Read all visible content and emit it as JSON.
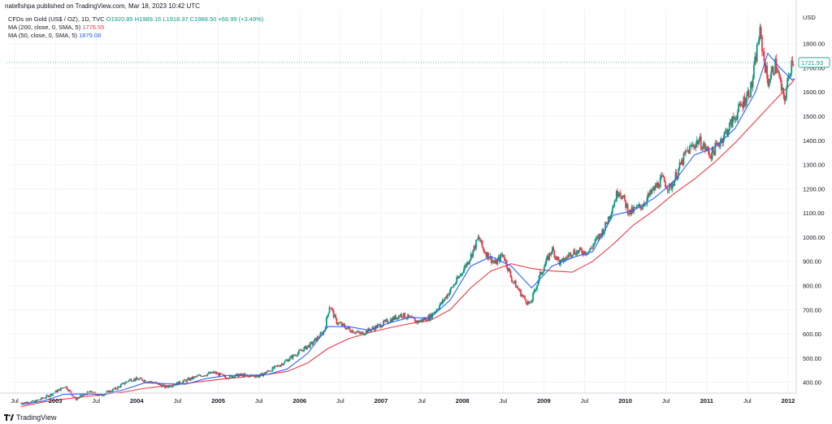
{
  "header": {
    "publisher": "natefishpa published on TradingView.com, Mar 18, 2023 10:42 UTC"
  },
  "legend": {
    "symbol": "CFDs on Gold (US$ / OZ), 1D, TVC",
    "open": "O1920.85",
    "high": "H1989.16",
    "low": "L1918.37",
    "close": "C1988.50",
    "change": "+66.99 (+3.49%)",
    "ma200_label": "MA (200, close, 0, SMA, 5)",
    "ma200_value": "1776.55",
    "ma50_label": "MA (50, close, 0, SMA, 5)",
    "ma50_value": "1879.08"
  },
  "footer": {
    "brand": "TradingView"
  },
  "colors": {
    "up": "#089981",
    "down": "#f23645",
    "ma200": "#f23645",
    "ma50": "#2962ff",
    "grid": "#f0f3fa"
  },
  "chart_data": {
    "type": "candlestick",
    "title": "CFDs on Gold (US$ / OZ), 1D, TVC",
    "currency_label": "USD",
    "y_ticks": [
      "400.00",
      "500.00",
      "600.00",
      "700.00",
      "800.00",
      "900.00",
      "1000.00",
      "1100.00",
      "1200.00",
      "1300.00",
      "1400.00",
      "1500.00",
      "1600.00",
      "1700.00",
      "1800.00"
    ],
    "ylim": [
      355,
      1940
    ],
    "x_ticks": [
      {
        "label": "Jul",
        "t": 2002.5,
        "bold": false
      },
      {
        "label": "2003",
        "t": 2003.0,
        "bold": true
      },
      {
        "label": "Jul",
        "t": 2003.5,
        "bold": false
      },
      {
        "label": "2004",
        "t": 2004.0,
        "bold": true
      },
      {
        "label": "Jul",
        "t": 2004.5,
        "bold": false
      },
      {
        "label": "2005",
        "t": 2005.0,
        "bold": true
      },
      {
        "label": "Jul",
        "t": 2005.5,
        "bold": false
      },
      {
        "label": "2006",
        "t": 2006.0,
        "bold": true
      },
      {
        "label": "Jul",
        "t": 2006.5,
        "bold": false
      },
      {
        "label": "2007",
        "t": 2007.0,
        "bold": true
      },
      {
        "label": "Jul",
        "t": 2007.5,
        "bold": false
      },
      {
        "label": "2008",
        "t": 2008.0,
        "bold": true
      },
      {
        "label": "Jul",
        "t": 2008.5,
        "bold": false
      },
      {
        "label": "2009",
        "t": 2009.0,
        "bold": true
      },
      {
        "label": "Jul",
        "t": 2009.5,
        "bold": false
      },
      {
        "label": "2010",
        "t": 2010.0,
        "bold": true
      },
      {
        "label": "Jul",
        "t": 2010.5,
        "bold": false
      },
      {
        "label": "2011",
        "t": 2011.0,
        "bold": true
      },
      {
        "label": "Jul",
        "t": 2011.5,
        "bold": false
      },
      {
        "label": "2012",
        "t": 2012.0,
        "bold": true
      }
    ],
    "xlim": [
      2002.4,
      2012.1
    ],
    "price_path": [
      [
        2002.58,
        315
      ],
      [
        2002.75,
        320
      ],
      [
        2002.92,
        345
      ],
      [
        2003.08,
        375
      ],
      [
        2003.12,
        385
      ],
      [
        2003.25,
        330
      ],
      [
        2003.42,
        360
      ],
      [
        2003.55,
        345
      ],
      [
        2003.75,
        375
      ],
      [
        2003.92,
        412
      ],
      [
        2004.05,
        412
      ],
      [
        2004.25,
        395
      ],
      [
        2004.35,
        380
      ],
      [
        2004.5,
        395
      ],
      [
        2004.75,
        425
      ],
      [
        2004.95,
        440
      ],
      [
        2005.1,
        420
      ],
      [
        2005.25,
        430
      ],
      [
        2005.5,
        425
      ],
      [
        2005.75,
        470
      ],
      [
        2005.95,
        515
      ],
      [
        2006.15,
        560
      ],
      [
        2006.3,
        610
      ],
      [
        2006.37,
        720
      ],
      [
        2006.45,
        650
      ],
      [
        2006.6,
        620
      ],
      [
        2006.75,
        600
      ],
      [
        2006.95,
        630
      ],
      [
        2007.1,
        655
      ],
      [
        2007.25,
        680
      ],
      [
        2007.45,
        650
      ],
      [
        2007.6,
        670
      ],
      [
        2007.75,
        730
      ],
      [
        2007.95,
        830
      ],
      [
        2008.1,
        920
      ],
      [
        2008.2,
        1000
      ],
      [
        2008.25,
        950
      ],
      [
        2008.4,
        890
      ],
      [
        2008.5,
        930
      ],
      [
        2008.6,
        830
      ],
      [
        2008.75,
        750
      ],
      [
        2008.83,
        720
      ],
      [
        2008.95,
        840
      ],
      [
        2009.1,
        950
      ],
      [
        2009.2,
        890
      ],
      [
        2009.35,
        940
      ],
      [
        2009.55,
        940
      ],
      [
        2009.75,
        1040
      ],
      [
        2009.92,
        1200
      ],
      [
        2010.05,
        1100
      ],
      [
        2010.2,
        1130
      ],
      [
        2010.45,
        1240
      ],
      [
        2010.55,
        1200
      ],
      [
        2010.75,
        1350
      ],
      [
        2010.9,
        1400
      ],
      [
        2011.05,
        1340
      ],
      [
        2011.25,
        1440
      ],
      [
        2011.4,
        1530
      ],
      [
        2011.55,
        1620
      ],
      [
        2011.65,
        1850
      ],
      [
        2011.75,
        1640
      ],
      [
        2011.85,
        1720
      ],
      [
        2011.95,
        1560
      ],
      [
        2012.05,
        1740
      ],
      [
        2012.08,
        1722
      ]
    ],
    "ma50_path": [
      [
        2002.58,
        308
      ],
      [
        2002.85,
        322
      ],
      [
        2003.1,
        350
      ],
      [
        2003.35,
        352
      ],
      [
        2003.6,
        350
      ],
      [
        2003.85,
        370
      ],
      [
        2004.1,
        398
      ],
      [
        2004.35,
        394
      ],
      [
        2004.6,
        392
      ],
      [
        2004.85,
        415
      ],
      [
        2005.1,
        428
      ],
      [
        2005.35,
        428
      ],
      [
        2005.6,
        432
      ],
      [
        2005.85,
        455
      ],
      [
        2006.1,
        520
      ],
      [
        2006.35,
        630
      ],
      [
        2006.6,
        630
      ],
      [
        2006.85,
        615
      ],
      [
        2007.1,
        645
      ],
      [
        2007.35,
        668
      ],
      [
        2007.6,
        665
      ],
      [
        2007.85,
        740
      ],
      [
        2008.1,
        880
      ],
      [
        2008.35,
        920
      ],
      [
        2008.6,
        880
      ],
      [
        2008.85,
        790
      ],
      [
        2009.1,
        880
      ],
      [
        2009.35,
        915
      ],
      [
        2009.6,
        940
      ],
      [
        2009.85,
        1090
      ],
      [
        2010.1,
        1110
      ],
      [
        2010.35,
        1160
      ],
      [
        2010.6,
        1230
      ],
      [
        2010.85,
        1340
      ],
      [
        2011.1,
        1370
      ],
      [
        2011.35,
        1450
      ],
      [
        2011.6,
        1600
      ],
      [
        2011.75,
        1760
      ],
      [
        2011.9,
        1700
      ],
      [
        2012.05,
        1650
      ],
      [
        2012.08,
        1655
      ]
    ],
    "ma200_path": [
      [
        2002.58,
        300
      ],
      [
        2002.85,
        318
      ],
      [
        2003.1,
        330
      ],
      [
        2003.35,
        340
      ],
      [
        2003.6,
        350
      ],
      [
        2003.85,
        360
      ],
      [
        2004.1,
        375
      ],
      [
        2004.35,
        385
      ],
      [
        2004.6,
        395
      ],
      [
        2004.85,
        405
      ],
      [
        2005.1,
        415
      ],
      [
        2005.35,
        423
      ],
      [
        2005.6,
        432
      ],
      [
        2005.85,
        445
      ],
      [
        2006.1,
        480
      ],
      [
        2006.35,
        540
      ],
      [
        2006.6,
        580
      ],
      [
        2006.85,
        605
      ],
      [
        2007.1,
        625
      ],
      [
        2007.35,
        642
      ],
      [
        2007.6,
        655
      ],
      [
        2007.85,
        700
      ],
      [
        2008.1,
        790
      ],
      [
        2008.35,
        860
      ],
      [
        2008.6,
        890
      ],
      [
        2008.85,
        870
      ],
      [
        2009.1,
        860
      ],
      [
        2009.35,
        855
      ],
      [
        2009.6,
        900
      ],
      [
        2009.85,
        970
      ],
      [
        2010.1,
        1050
      ],
      [
        2010.35,
        1110
      ],
      [
        2010.6,
        1180
      ],
      [
        2010.85,
        1240
      ],
      [
        2011.1,
        1310
      ],
      [
        2011.35,
        1390
      ],
      [
        2011.6,
        1480
      ],
      [
        2011.85,
        1570
      ],
      [
        2012.05,
        1640
      ],
      [
        2012.08,
        1655
      ]
    ],
    "last_price": "1721.93",
    "last_value": 1721.93
  }
}
